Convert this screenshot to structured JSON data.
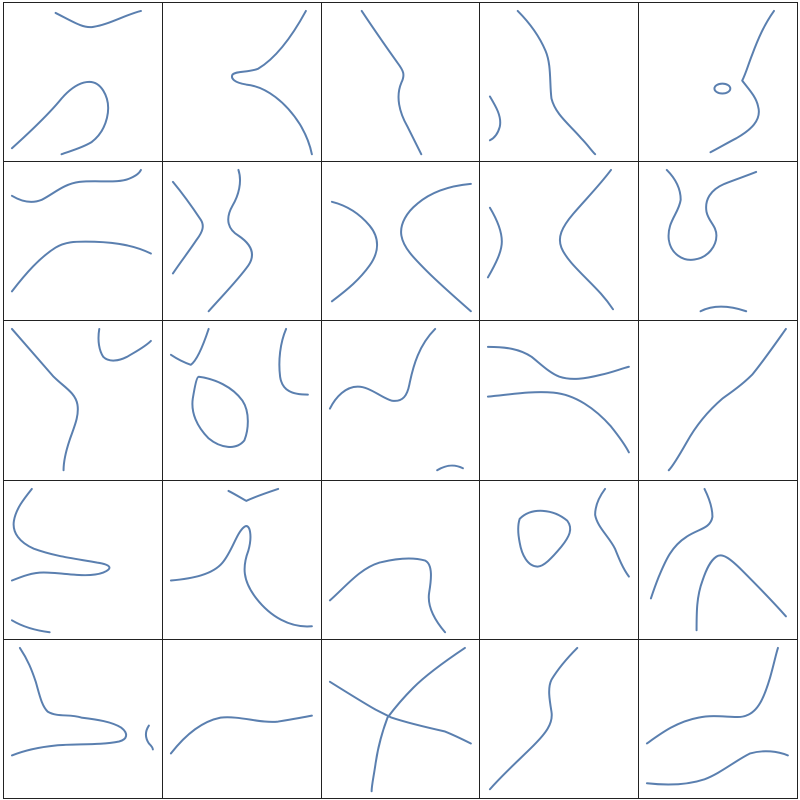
{
  "figure": {
    "rows": 5,
    "columns": 5,
    "curve_color": "#5a7faf",
    "border_color": "#222222",
    "background": "#ffffff"
  }
}
